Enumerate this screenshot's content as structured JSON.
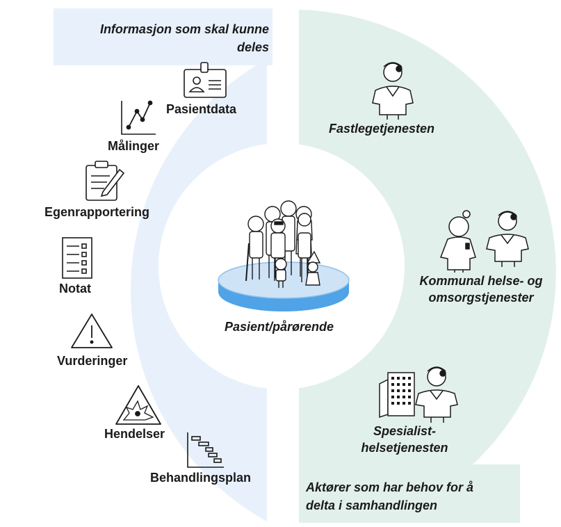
{
  "header_left": {
    "line1": "Informasjon som skal kunne",
    "line2": "deles"
  },
  "info_items": {
    "pasientdata": "Pasientdata",
    "malinger": "Målinger",
    "egenrapportering": "Egenrapportering",
    "notat": "Notat",
    "vurderinger": "Vurderinger",
    "hendelser": "Hendelser",
    "behandlingsplan": "Behandlingsplan"
  },
  "center": {
    "label": "Pasient/pårørende"
  },
  "actors": {
    "fastlege": "Fastlegetjenesten",
    "kommunal_line1": "Kommunal helse- og",
    "kommunal_line2": "omsorgstjenester",
    "spesialist_line1": "Spesialist-",
    "spesialist_line2": "helsetjenesten"
  },
  "footer_right": {
    "line1": "Aktører som har behov for å",
    "line2": "delta i samhandlingen"
  },
  "colors": {
    "left_panel": "#e8f1fb",
    "right_panel": "#e2f0ec",
    "platform_top": "#cfe3f7",
    "platform_side": "#4fa3e6"
  }
}
